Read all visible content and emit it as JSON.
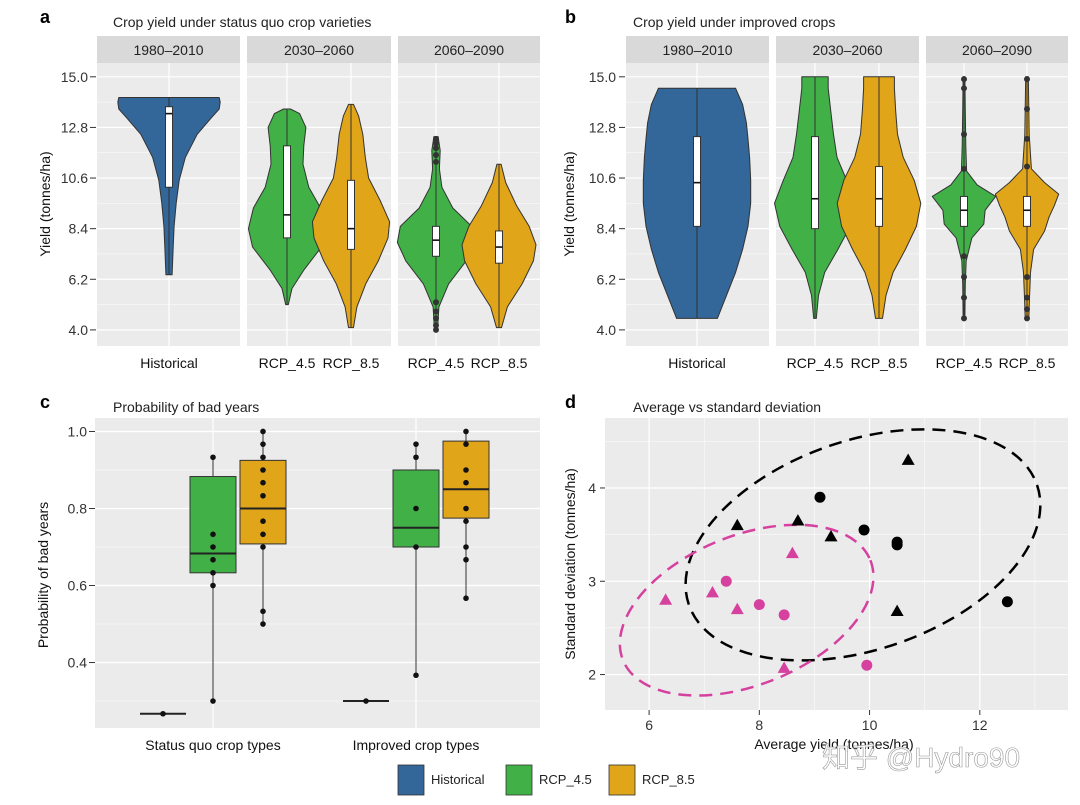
{
  "colors": {
    "historical": "#336699",
    "rcp45": "#41b047",
    "rcp85": "#e0a518",
    "panel_bg": "#ebebeb",
    "strip_bg": "#d9d9d9",
    "grid": "#ffffff",
    "black_points": "#000000",
    "pink_points": "#d6409f"
  },
  "legend": [
    {
      "label": "Historical",
      "color": "#336699"
    },
    {
      "label": "RCP_4.5",
      "color": "#41b047"
    },
    {
      "label": "RCP_8.5",
      "color": "#e0a518"
    }
  ],
  "watermark": "知乎 @Hydro90",
  "chart_data": [
    {
      "panel": "a",
      "type": "violin",
      "title": "Crop yield under status quo crop varieties",
      "ylabel": "Yield (tonnes/ha)",
      "ylim": [
        3.3,
        15.6
      ],
      "yticks": [
        "4.0",
        "6.2",
        "8.4",
        "10.6",
        "12.8",
        "15.0"
      ],
      "facets": [
        {
          "label": "1980–2010",
          "categories": [
            "Historical"
          ]
        },
        {
          "label": "2030–2060",
          "categories": [
            "RCP_4.5",
            "RCP_8.5"
          ]
        },
        {
          "label": "2060–2090",
          "categories": [
            "RCP_4.5",
            "RCP_8.5"
          ]
        }
      ],
      "series": [
        {
          "facet": 0,
          "name": "Historical",
          "color": "historical",
          "min": 6.4,
          "max": 14.1,
          "q1": 10.2,
          "median": 13.4,
          "q3": 13.7,
          "profile": [
            [
              6.4,
              0.06
            ],
            [
              7.5,
              0.08
            ],
            [
              8.5,
              0.1
            ],
            [
              9.5,
              0.14
            ],
            [
              10.5,
              0.2
            ],
            [
              11.5,
              0.32
            ],
            [
              12.5,
              0.55
            ],
            [
              13.2,
              0.82
            ],
            [
              13.6,
              0.98
            ],
            [
              13.9,
              1.0
            ],
            [
              14.1,
              0.98
            ]
          ]
        },
        {
          "facet": 1,
          "name": "RCP_4.5",
          "color": "rcp45",
          "min": 5.1,
          "max": 13.6,
          "q1": 8.0,
          "median": 9.0,
          "q3": 12.0,
          "profile": [
            [
              5.1,
              0.03
            ],
            [
              5.8,
              0.12
            ],
            [
              6.6,
              0.4
            ],
            [
              7.6,
              0.82
            ],
            [
              8.4,
              0.92
            ],
            [
              9.3,
              0.8
            ],
            [
              10.2,
              0.52
            ],
            [
              11.2,
              0.38
            ],
            [
              12.0,
              0.4
            ],
            [
              12.8,
              0.45
            ],
            [
              13.4,
              0.3
            ],
            [
              13.6,
              0.08
            ]
          ]
        },
        {
          "facet": 1,
          "name": "RCP_8.5",
          "color": "rcp85",
          "min": 4.1,
          "max": 13.8,
          "q1": 7.5,
          "median": 8.4,
          "q3": 10.5,
          "profile": [
            [
              4.1,
              0.06
            ],
            [
              5.0,
              0.14
            ],
            [
              6.0,
              0.35
            ],
            [
              7.0,
              0.65
            ],
            [
              8.0,
              0.88
            ],
            [
              8.7,
              0.92
            ],
            [
              9.6,
              0.7
            ],
            [
              10.6,
              0.42
            ],
            [
              11.5,
              0.34
            ],
            [
              12.5,
              0.28
            ],
            [
              13.3,
              0.18
            ],
            [
              13.8,
              0.06
            ]
          ]
        },
        {
          "facet": 2,
          "name": "RCP_4.5",
          "color": "rcp45",
          "min": 4.1,
          "max": 12.4,
          "q1": 7.2,
          "median": 7.9,
          "q3": 8.5,
          "outliers": [
            4.0,
            4.2,
            4.5,
            4.8,
            5.2,
            11.3,
            11.6,
            11.9,
            12.1,
            12.3
          ],
          "profile": [
            [
              4.1,
              0.04
            ],
            [
              5.0,
              0.07
            ],
            [
              6.0,
              0.3
            ],
            [
              7.0,
              0.72
            ],
            [
              7.8,
              0.92
            ],
            [
              8.5,
              0.85
            ],
            [
              9.3,
              0.4
            ],
            [
              10.2,
              0.14
            ],
            [
              11.0,
              0.08
            ],
            [
              11.8,
              0.1
            ],
            [
              12.4,
              0.05
            ]
          ]
        },
        {
          "facet": 2,
          "name": "RCP_8.5",
          "color": "rcp85",
          "min": 4.1,
          "max": 11.2,
          "q1": 6.9,
          "median": 7.6,
          "q3": 8.3,
          "profile": [
            [
              4.1,
              0.06
            ],
            [
              5.0,
              0.2
            ],
            [
              6.0,
              0.55
            ],
            [
              7.0,
              0.82
            ],
            [
              7.7,
              0.88
            ],
            [
              8.5,
              0.72
            ],
            [
              9.4,
              0.42
            ],
            [
              10.4,
              0.16
            ],
            [
              11.2,
              0.05
            ]
          ]
        }
      ]
    },
    {
      "panel": "b",
      "type": "violin",
      "title": "Crop yield under improved crops",
      "ylabel": "Yield (tonnes/ha)",
      "ylim": [
        3.3,
        15.6
      ],
      "yticks": [
        "4.0",
        "6.2",
        "8.4",
        "10.6",
        "12.8",
        "15.0"
      ],
      "facets": [
        {
          "label": "1980–2010",
          "categories": [
            "Historical"
          ]
        },
        {
          "label": "2030–2060",
          "categories": [
            "RCP_4.5",
            "RCP_8.5"
          ]
        },
        {
          "label": "2060–2090",
          "categories": [
            "RCP_4.5",
            "RCP_8.5"
          ]
        }
      ],
      "series": [
        {
          "facet": 0,
          "name": "Historical",
          "color": "historical",
          "min": 4.5,
          "max": 14.5,
          "q1": 8.5,
          "median": 10.4,
          "q3": 12.4,
          "profile": [
            [
              4.5,
              0.38
            ],
            [
              5.5,
              0.55
            ],
            [
              6.5,
              0.72
            ],
            [
              7.5,
              0.85
            ],
            [
              8.5,
              0.95
            ],
            [
              9.5,
              1.0
            ],
            [
              10.5,
              1.0
            ],
            [
              11.5,
              0.98
            ],
            [
              12.3,
              0.95
            ],
            [
              13.0,
              0.92
            ],
            [
              13.8,
              0.85
            ],
            [
              14.5,
              0.72
            ]
          ]
        },
        {
          "facet": 1,
          "name": "RCP_4.5",
          "color": "rcp45",
          "min": 4.5,
          "max": 15.0,
          "q1": 8.4,
          "median": 9.7,
          "q3": 12.4,
          "profile": [
            [
              4.5,
              0.03
            ],
            [
              5.5,
              0.08
            ],
            [
              6.5,
              0.22
            ],
            [
              7.5,
              0.52
            ],
            [
              8.5,
              0.8
            ],
            [
              9.5,
              0.92
            ],
            [
              10.5,
              0.72
            ],
            [
              11.5,
              0.5
            ],
            [
              12.5,
              0.42
            ],
            [
              13.5,
              0.36
            ],
            [
              14.5,
              0.3
            ],
            [
              15.0,
              0.3
            ]
          ]
        },
        {
          "facet": 1,
          "name": "RCP_8.5",
          "color": "rcp85",
          "min": 4.5,
          "max": 15.0,
          "q1": 8.5,
          "median": 9.7,
          "q3": 11.1,
          "profile": [
            [
              4.5,
              0.08
            ],
            [
              5.5,
              0.16
            ],
            [
              6.5,
              0.32
            ],
            [
              7.5,
              0.6
            ],
            [
              8.5,
              0.85
            ],
            [
              9.5,
              0.95
            ],
            [
              10.5,
              0.8
            ],
            [
              11.5,
              0.55
            ],
            [
              12.5,
              0.42
            ],
            [
              13.5,
              0.38
            ],
            [
              14.5,
              0.35
            ],
            [
              15.0,
              0.35
            ]
          ]
        },
        {
          "facet": 2,
          "name": "RCP_4.5",
          "color": "rcp45",
          "min": 4.5,
          "max": 15.0,
          "q1": 8.5,
          "median": 9.2,
          "q3": 9.8,
          "outliers": [
            4.5,
            5.4,
            6.3,
            7.2,
            11.0,
            12.5,
            14.5,
            14.9
          ],
          "profile": [
            [
              4.5,
              0.02
            ],
            [
              6.0,
              0.03
            ],
            [
              7.0,
              0.05
            ],
            [
              8.0,
              0.18
            ],
            [
              8.6,
              0.45
            ],
            [
              9.2,
              0.48
            ],
            [
              9.8,
              0.72
            ],
            [
              10.3,
              0.3
            ],
            [
              10.9,
              0.06
            ],
            [
              12.0,
              0.04
            ],
            [
              13.5,
              0.03
            ],
            [
              15.0,
              0.02
            ]
          ]
        },
        {
          "facet": 2,
          "name": "RCP_8.5",
          "color": "rcp85",
          "min": 4.5,
          "max": 15.0,
          "q1": 8.5,
          "median": 9.2,
          "q3": 9.8,
          "outliers": [
            4.5,
            4.9,
            5.4,
            6.3,
            11.1,
            12.3,
            13.6,
            14.9
          ],
          "profile": [
            [
              4.5,
              0.04
            ],
            [
              5.5,
              0.06
            ],
            [
              6.5,
              0.08
            ],
            [
              7.5,
              0.15
            ],
            [
              8.3,
              0.4
            ],
            [
              8.9,
              0.5
            ],
            [
              9.4,
              0.62
            ],
            [
              9.9,
              0.72
            ],
            [
              10.4,
              0.4
            ],
            [
              11.0,
              0.1
            ],
            [
              12.5,
              0.05
            ],
            [
              15.0,
              0.03
            ]
          ]
        }
      ]
    },
    {
      "panel": "c",
      "type": "box",
      "title": "Probability of bad years",
      "ylabel": "Probability of bad years",
      "ylim": [
        0.23,
        1.035
      ],
      "yticks": [
        "0.4",
        "0.6",
        "0.8",
        "1.0"
      ],
      "categories": [
        "Status quo crop types",
        "Improved crop types"
      ],
      "series": [
        {
          "group": 0,
          "name": "Historical",
          "color": "historical",
          "min": 0.267,
          "q1": 0.267,
          "median": 0.267,
          "q3": 0.267,
          "max": 0.267,
          "points": [
            0.267
          ]
        },
        {
          "group": 0,
          "name": "RCP_4.5",
          "color": "rcp45",
          "min": 0.3,
          "q1": 0.633,
          "median": 0.683,
          "q3": 0.883,
          "max": 0.933,
          "points": [
            0.3,
            0.6,
            0.633,
            0.667,
            0.7,
            0.733,
            0.933
          ]
        },
        {
          "group": 0,
          "name": "RCP_8.5",
          "color": "rcp85",
          "min": 0.5,
          "q1": 0.708,
          "median": 0.8,
          "q3": 0.925,
          "max": 1.0,
          "points": [
            0.5,
            0.533,
            0.7,
            0.733,
            0.767,
            0.833,
            0.867,
            0.9,
            0.933,
            0.967,
            1.0
          ]
        },
        {
          "group": 1,
          "name": "Historical",
          "color": "historical",
          "min": 0.3,
          "q1": 0.3,
          "median": 0.3,
          "q3": 0.3,
          "max": 0.3,
          "points": [
            0.3
          ]
        },
        {
          "group": 1,
          "name": "RCP_4.5",
          "color": "rcp45",
          "min": 0.367,
          "q1": 0.7,
          "median": 0.75,
          "q3": 0.9,
          "max": 0.967,
          "points": [
            0.367,
            0.7,
            0.8,
            0.933,
            0.967
          ]
        },
        {
          "group": 1,
          "name": "RCP_8.5",
          "color": "rcp85",
          "min": 0.567,
          "q1": 0.775,
          "median": 0.85,
          "q3": 0.975,
          "max": 1.0,
          "points": [
            0.567,
            0.667,
            0.7,
            0.767,
            0.8,
            0.867,
            0.9,
            0.967,
            1.0
          ]
        }
      ]
    },
    {
      "panel": "d",
      "type": "scatter",
      "title": "Average vs standard deviation",
      "xlabel": "Average yield (tonnes/ha)",
      "ylabel": "Standard deviation (tonnes/ha)",
      "xlim": [
        5.2,
        13.6
      ],
      "ylim": [
        1.62,
        4.75
      ],
      "xticks": [
        6,
        8,
        10,
        12
      ],
      "yticks": [
        2,
        3,
        4
      ],
      "series": [
        {
          "name": "black circles",
          "color": "black_points",
          "marker": "circle",
          "x": [
            9.1,
            9.9,
            10.5,
            10.5,
            12.5
          ],
          "y": [
            3.9,
            3.55,
            3.42,
            3.39,
            2.78
          ]
        },
        {
          "name": "black triangles",
          "color": "black_points",
          "marker": "triangle",
          "x": [
            7.6,
            8.7,
            9.3,
            10.5,
            10.7
          ],
          "y": [
            3.6,
            3.65,
            3.48,
            2.68,
            4.3
          ]
        },
        {
          "name": "pink circles",
          "color": "pink_points",
          "marker": "circle",
          "x": [
            7.4,
            8.0,
            8.45,
            9.95
          ],
          "y": [
            3.0,
            2.75,
            2.64,
            2.1
          ]
        },
        {
          "name": "pink triangles",
          "color": "pink_points",
          "marker": "triangle",
          "x": [
            6.3,
            7.15,
            7.6,
            8.45,
            8.6
          ],
          "y": [
            2.8,
            2.88,
            2.7,
            2.07,
            3.3
          ]
        }
      ],
      "ellipses": [
        {
          "color": "black_points",
          "cx": 9.88,
          "cy": 3.39,
          "rx": 3.34,
          "ry": 1.12,
          "angle": -19
        },
        {
          "color": "pink_points",
          "cx": 7.77,
          "cy": 2.69,
          "rx": 2.42,
          "ry": 0.8,
          "angle": -22
        }
      ]
    }
  ]
}
